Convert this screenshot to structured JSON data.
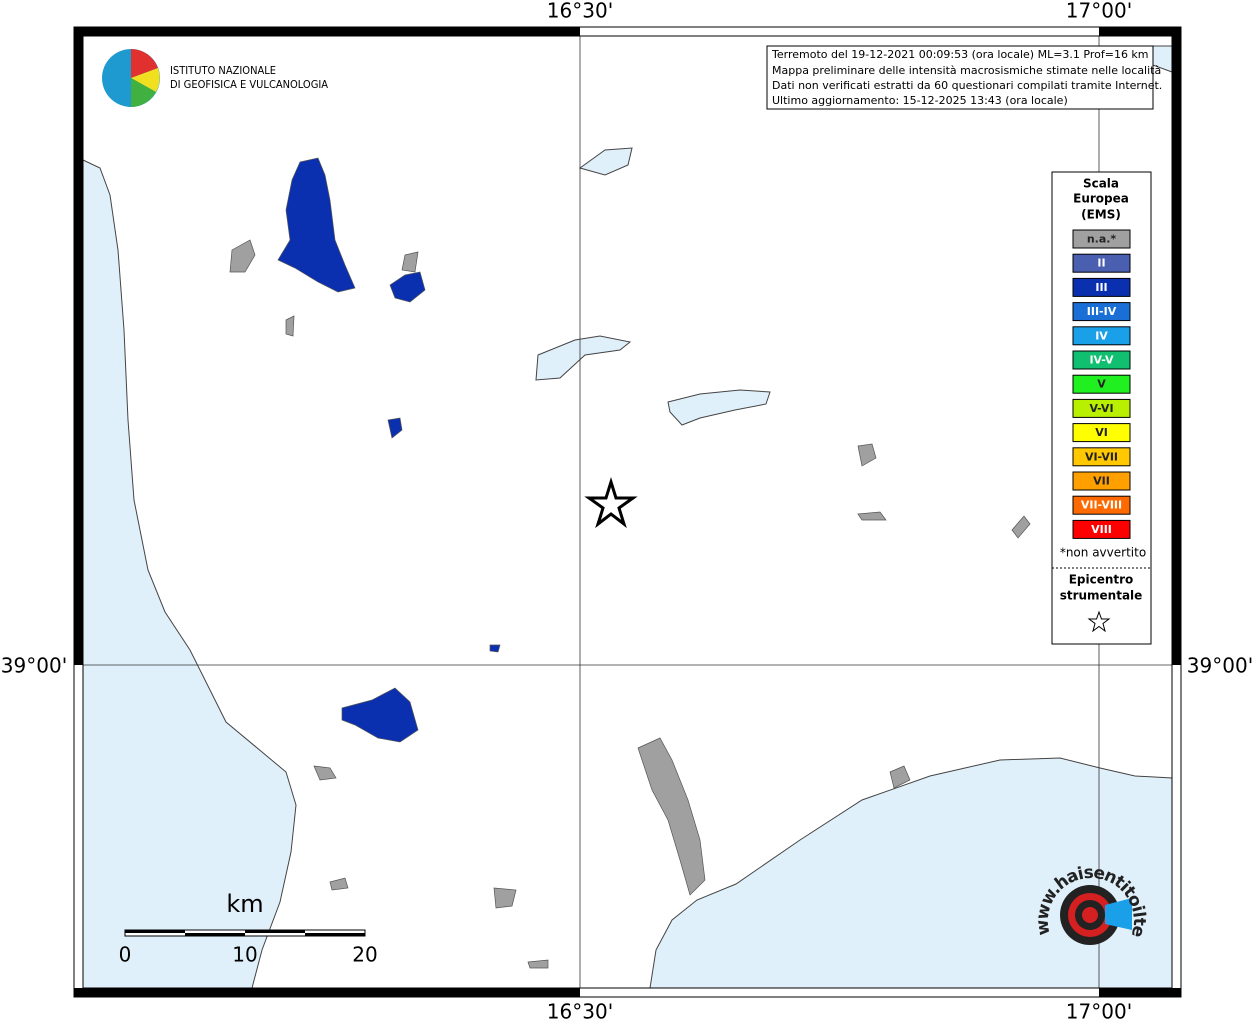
{
  "graticule": {
    "top": [
      "16°30'",
      "17°00'"
    ],
    "bottom": [
      "16°30'",
      "17°00'"
    ],
    "left": [
      "39°00'"
    ],
    "right": [
      "39°00'"
    ]
  },
  "header": {
    "lines": [
      "Terremoto del 19-12-2021 00:09:53 (ora locale) ML=3.1 Prof=16 km",
      "Mappa preliminare delle intensità macrosismiche stimate nelle località",
      "Dati non verificati estratti da 60 questionari compilati tramite Internet.",
      "Ultimo aggiornamento: 15-12-2025 13:43 (ora locale)"
    ]
  },
  "logo": {
    "lines": [
      "ISTITUTO NAZIONALE",
      "DI GEOFISICA E VULCANOLOGIA"
    ]
  },
  "legend": {
    "title": [
      "Scala",
      "Europea",
      "(EMS)"
    ],
    "classes": [
      {
        "label": "n.a.*",
        "color": "#a0a0a0"
      },
      {
        "label": "II",
        "color": "#4a5fb0"
      },
      {
        "label": "III",
        "color": "#0a30b0"
      },
      {
        "label": "III-IV",
        "color": "#1a6fd6"
      },
      {
        "label": "IV",
        "color": "#1aa0e8"
      },
      {
        "label": "IV-V",
        "color": "#10c070"
      },
      {
        "label": "V",
        "color": "#20f020"
      },
      {
        "label": "V-VI",
        "color": "#b8f000"
      },
      {
        "label": "VI",
        "color": "#ffff00"
      },
      {
        "label": "VI-VII",
        "color": "#ffc800"
      },
      {
        "label": "VII",
        "color": "#ffa000"
      },
      {
        "label": "VII-VIII",
        "color": "#ff6a00"
      },
      {
        "label": "VIII",
        "color": "#ff0000"
      }
    ],
    "note": "*non avvertito",
    "epicenter": [
      "Epicentro",
      "strumentale"
    ]
  },
  "scale_bar": {
    "unit": "km",
    "labels": [
      0,
      10,
      20
    ]
  },
  "site_logo": {
    "text": "www.haisentitoilterremoto.it"
  }
}
